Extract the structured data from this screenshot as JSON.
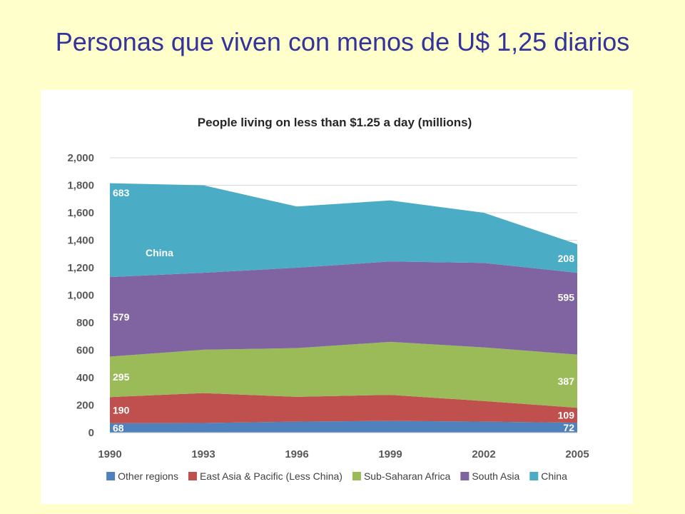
{
  "slide": {
    "title": "Personas que viven con menos de U$ 1,25 diarios"
  },
  "chart_data": {
    "type": "area",
    "stacked": true,
    "title": "People living on less than $1.25 a day (millions)",
    "xlabel": "",
    "ylabel": "",
    "x": [
      1990,
      1993,
      1996,
      1999,
      2002,
      2005
    ],
    "x_tick_labels": [
      "1990",
      "1993",
      "1996",
      "1999",
      "2002",
      "2005"
    ],
    "ylim": [
      0,
      2000
    ],
    "y_ticks": [
      0,
      200,
      400,
      600,
      800,
      1000,
      1200,
      1400,
      1600,
      1800,
      2000
    ],
    "y_tick_labels": [
      "0",
      "200",
      "400",
      "600",
      "800",
      "1,000",
      "1,200",
      "1,400",
      "1,600",
      "1,800",
      "2,000"
    ],
    "grid": true,
    "legend_position": "bottom",
    "series": [
      {
        "name": "Other regions",
        "color": "#4f81bd",
        "values": [
          68,
          70,
          80,
          85,
          80,
          72
        ]
      },
      {
        "name": "East Asia & Pacific (Less China)",
        "color": "#c0504d",
        "values": [
          190,
          218,
          180,
          190,
          150,
          109
        ]
      },
      {
        "name": "Sub-Saharan Africa",
        "color": "#9bbb59",
        "values": [
          295,
          315,
          355,
          385,
          390,
          387
        ]
      },
      {
        "name": "South Asia",
        "color": "#8064a2",
        "values": [
          579,
          560,
          585,
          585,
          615,
          595
        ]
      },
      {
        "name": "China",
        "color": "#4bacc6",
        "values": [
          683,
          637,
          445,
          445,
          365,
          208
        ]
      }
    ],
    "annotations": [
      {
        "text": "683",
        "series": 4,
        "x_index": 0,
        "anchor": "top"
      },
      {
        "text": "China",
        "series": 4,
        "x_index": 0,
        "anchor": "inner"
      },
      {
        "text": "579",
        "series": 3,
        "x_index": 0,
        "anchor": "middle"
      },
      {
        "text": "295",
        "series": 2,
        "x_index": 0,
        "anchor": "middle"
      },
      {
        "text": "190",
        "series": 1,
        "x_index": 0,
        "anchor": "middle"
      },
      {
        "text": "68",
        "series": 0,
        "x_index": 0,
        "anchor": "middle"
      },
      {
        "text": "208",
        "series": 4,
        "x_index": 5,
        "anchor": "middle"
      },
      {
        "text": "595",
        "series": 3,
        "x_index": 5,
        "anchor": "upper"
      },
      {
        "text": "387",
        "series": 2,
        "x_index": 5,
        "anchor": "middle"
      },
      {
        "text": "109",
        "series": 1,
        "x_index": 5,
        "anchor": "middle"
      },
      {
        "text": "72",
        "series": 0,
        "x_index": 5,
        "anchor": "middle"
      }
    ]
  }
}
